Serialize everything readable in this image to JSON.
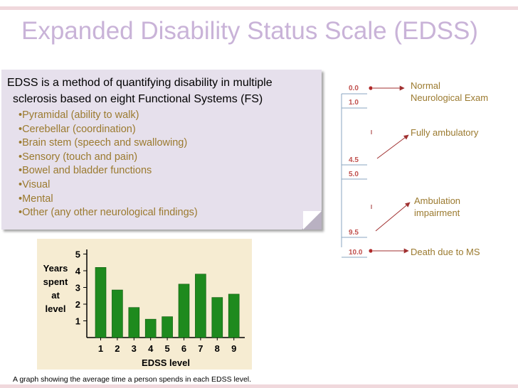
{
  "slide": {
    "title": "Expanded Disability Status Scale (EDSS)",
    "intro_line1": "EDSS is a method of quantifying disability in multiple",
    "intro_line2": "sclerosis based on eight Functional Systems (FS)",
    "fs_items": [
      "•Pyramidal (ability to walk)",
      "•Cerebellar (coordination)",
      "•Brain stem (speech and swallowing)",
      "•Sensory (touch and pain)",
      "•Bowel and bladder functions",
      "•Visual",
      "•Mental",
      "•Other (any other neurological findings)"
    ],
    "caption": "A graph showing the average time a person spends in each EDSS level."
  },
  "scale": {
    "ticks": [
      "0.0",
      "1.0",
      "4.5",
      "5.0",
      "9.5",
      "10.0"
    ],
    "labels": {
      "normal_1": "Normal",
      "normal_2": "Neurological Exam",
      "ambulatory": "Fully ambulatory",
      "impair_1": "Ambulation",
      "impair_2": "impairment",
      "death": "Death due to MS"
    },
    "colors": {
      "tick_text": "#c0504d",
      "arrow": "#a03030",
      "label": "#9b7a2f"
    }
  },
  "chart_data": {
    "type": "bar",
    "categories": [
      "1",
      "2",
      "3",
      "4",
      "5",
      "6",
      "7",
      "8",
      "9"
    ],
    "values": [
      4.2,
      2.85,
      1.8,
      1.1,
      1.25,
      3.2,
      3.8,
      2.4,
      2.6
    ],
    "title": "",
    "xlabel": "EDSS level",
    "ylabel": "Years spent at level",
    "ylabel_lines": [
      "Years",
      "spent",
      "at",
      "level"
    ],
    "yticks": [
      "1",
      "2",
      "3",
      "4",
      "5"
    ],
    "ylim": [
      0,
      5.5
    ],
    "grid": false,
    "colors": {
      "bar": "#1e8a1e",
      "background": "#f6ecd2"
    }
  }
}
